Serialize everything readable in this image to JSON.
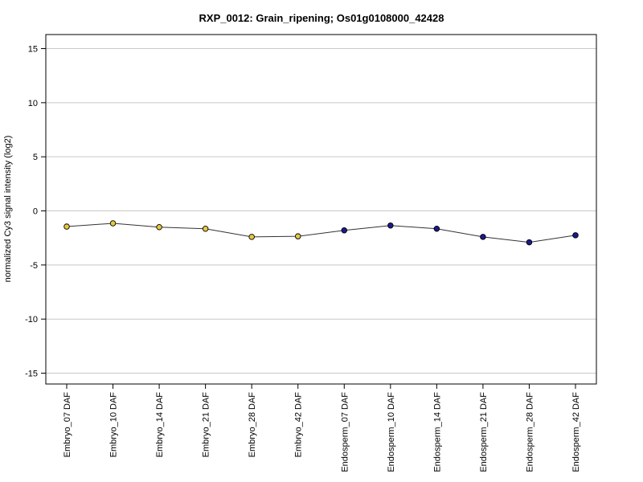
{
  "chart_data": {
    "type": "line",
    "title": "RXP_0012: Grain_ripening; Os01g0108000_42428",
    "xlabel": "",
    "ylabel": "normalized Cy3 signal intensity (log2)",
    "ylim": [
      -16,
      16.3
    ],
    "yticks": [
      -15,
      -10,
      -5,
      0,
      5,
      10,
      15
    ],
    "grid": true,
    "categories": [
      "Embryo_07 DAF",
      "Embryo_10 DAF",
      "Embryo_14 DAF",
      "Embryo_21 DAF",
      "Embryo_28 DAF",
      "Embryo_42 DAF",
      "Endosperm_07 DAF",
      "Endosperm_10 DAF",
      "Endosperm_14 DAF",
      "Endosperm_21 DAF",
      "Endosperm_28 DAF",
      "Endosperm_42 DAF"
    ],
    "series": [
      {
        "values": [
          -1.45,
          -1.15,
          -1.5,
          -1.65,
          -2.4,
          -2.35,
          -1.8,
          -1.35,
          -1.65,
          -2.4,
          -2.9,
          -2.25
        ],
        "error": [
          0.12,
          0.18,
          0.12,
          0.12,
          0.1,
          0.1,
          0.2,
          0.25,
          0.15,
          0.1,
          0.1,
          0.1
        ],
        "point_colors": [
          "#e8c840",
          "#e8c840",
          "#e8c840",
          "#e8c840",
          "#e8c840",
          "#e8c840",
          "#1a1a8c",
          "#1a1a8c",
          "#1a1a8c",
          "#1a1a8c",
          "#1a1a8c",
          "#1a1a8c"
        ]
      }
    ],
    "colors": {
      "embryo": "#e8c840",
      "endosperm": "#1a1a8c",
      "line": "#333333",
      "grid": "#c8c8c8"
    }
  }
}
